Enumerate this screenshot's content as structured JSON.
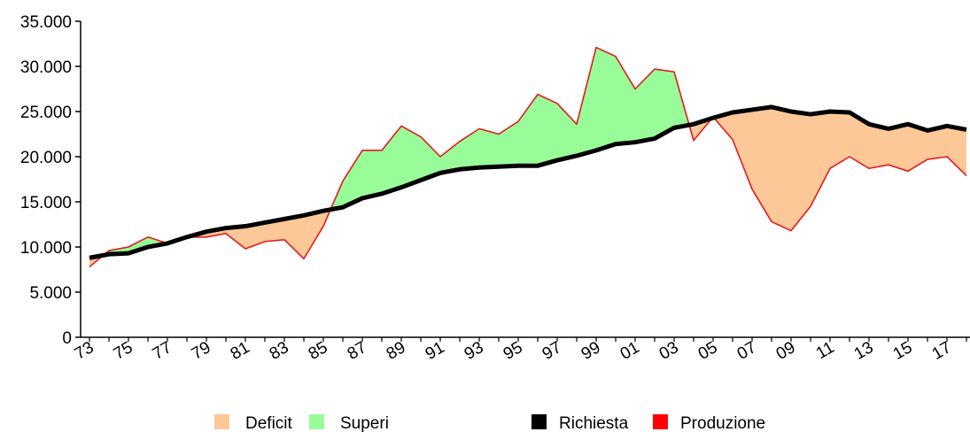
{
  "chart_data": {
    "type": "area",
    "x": [
      "73",
      "74",
      "75",
      "76",
      "77",
      "78",
      "79",
      "80",
      "81",
      "82",
      "83",
      "84",
      "85",
      "86",
      "87",
      "88",
      "89",
      "90",
      "91",
      "92",
      "93",
      "94",
      "95",
      "96",
      "97",
      "98",
      "99",
      "00",
      "01",
      "02",
      "03",
      "04",
      "05",
      "06",
      "07",
      "08",
      "09",
      "10",
      "11",
      "12",
      "13",
      "14",
      "15",
      "16",
      "17",
      "18"
    ],
    "x_tick_labels": [
      "73",
      "75",
      "77",
      "79",
      "81",
      "83",
      "85",
      "87",
      "89",
      "91",
      "93",
      "95",
      "97",
      "99",
      "01",
      "03",
      "05",
      "07",
      "09",
      "11",
      "13",
      "15",
      "17"
    ],
    "ylim": [
      0,
      35000
    ],
    "y_tick_labels": [
      "0",
      "5.000",
      "10.000",
      "15.000",
      "20.000",
      "25.000",
      "30.000",
      "35.000"
    ],
    "y_ticks": [
      0,
      5000,
      10000,
      15000,
      20000,
      25000,
      30000,
      35000
    ],
    "series": [
      {
        "name": "Richiesta",
        "color": "#000000",
        "values": [
          8800,
          9200,
          9300,
          10000,
          10400,
          11100,
          11700,
          12100,
          12300,
          12700,
          13100,
          13500,
          14000,
          14400,
          15400,
          15900,
          16600,
          17400,
          18200,
          18600,
          18800,
          18900,
          19000,
          19000,
          19600,
          20100,
          20700,
          21400,
          21600,
          22000,
          23200,
          23600,
          24300,
          24900,
          25200,
          25500,
          25000,
          24700,
          25000,
          24900,
          23600,
          23100,
          23600,
          22900,
          23400,
          23000
        ]
      },
      {
        "name": "Produzione",
        "color": "#e41a1c",
        "values": [
          7800,
          9600,
          10000,
          11100,
          10400,
          11100,
          11100,
          11500,
          9800,
          10600,
          10800,
          8700,
          12300,
          17300,
          20700,
          20700,
          23400,
          22200,
          20000,
          21700,
          23100,
          22500,
          23900,
          26900,
          25900,
          23600,
          32100,
          31100,
          27500,
          29700,
          29400,
          21800,
          24400,
          21900,
          16400,
          12800,
          11800,
          14500,
          18700,
          20000,
          18700,
          19100,
          18400,
          19700,
          20000,
          17900
        ]
      }
    ],
    "fill_legend": [
      {
        "name": "Deficit",
        "color": "#fcc897"
      },
      {
        "name": "Superi",
        "color": "#98fc98"
      }
    ],
    "legend_position": "bottom",
    "grid": false,
    "title": "",
    "xlabel": "",
    "ylabel": ""
  }
}
